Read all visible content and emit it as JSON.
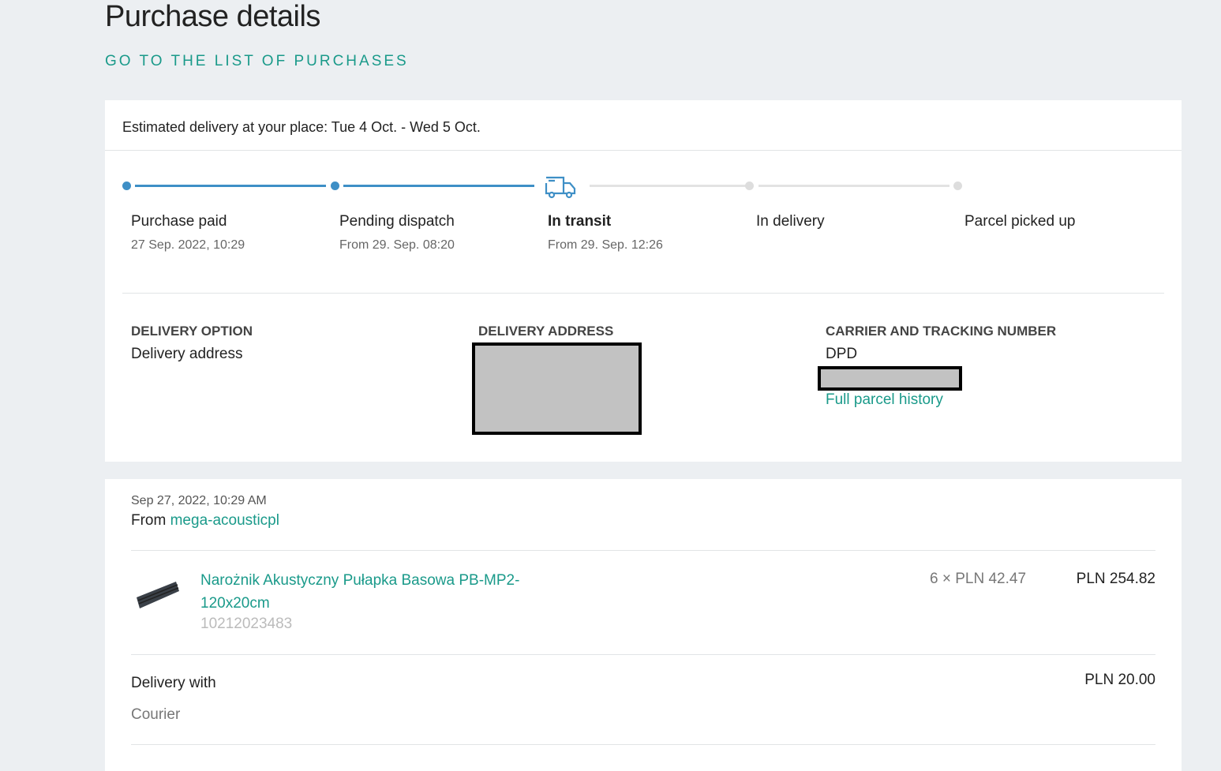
{
  "header": {
    "title": "Purchase details",
    "back_link": "GO TO THE LIST OF PURCHASES"
  },
  "delivery": {
    "estimate": "Estimated delivery at your place: Tue 4 Oct. - Wed 5 Oct."
  },
  "steps": [
    {
      "label": "Purchase paid",
      "date": "27 Sep. 2022, 10:29",
      "state": "done"
    },
    {
      "label": "Pending dispatch",
      "date": "From 29. Sep. 08:20",
      "state": "done"
    },
    {
      "label": "In transit",
      "date": "From 29. Sep. 12:26",
      "state": "current",
      "icon": "truck-icon"
    },
    {
      "label": "In delivery",
      "date": "",
      "state": "pending"
    },
    {
      "label": "Parcel picked up",
      "date": "",
      "state": "pending"
    }
  ],
  "info": {
    "option_heading": "DELIVERY OPTION",
    "option_value": "Delivery address",
    "address_heading": "DELIVERY ADDRESS",
    "carrier_heading": "CARRIER AND TRACKING NUMBER",
    "carrier": "DPD",
    "history_link": "Full parcel history"
  },
  "order": {
    "date": "Sep 27, 2022, 10:29 AM",
    "from_label": "From",
    "seller": "mega-acousticpl",
    "item": {
      "name": "Narożnik Akustyczny Pułapka Basowa PB-MP2-120x20cm",
      "id": "10212023483",
      "qty_price": "6 × PLN 42.47",
      "total": "PLN 254.82"
    },
    "delivery_label": "Delivery with",
    "delivery_method": "Courier",
    "delivery_price": "PLN 20.00"
  },
  "colors": {
    "accent": "#1a9a8a",
    "progress": "#3e8fc6"
  }
}
